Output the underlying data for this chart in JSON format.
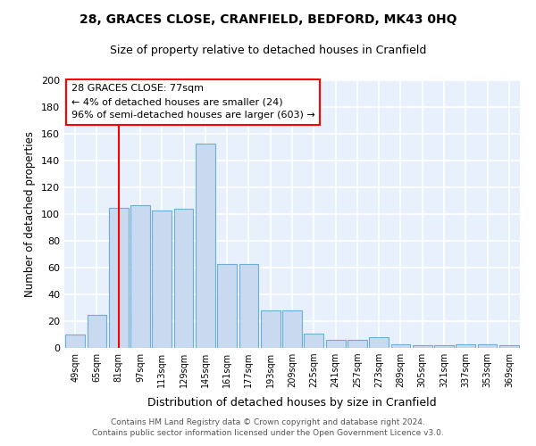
{
  "title1": "28, GRACES CLOSE, CRANFIELD, BEDFORD, MK43 0HQ",
  "title2": "Size of property relative to detached houses in Cranfield",
  "xlabel": "Distribution of detached houses by size in Cranfield",
  "ylabel": "Number of detached properties",
  "categories": [
    "49sqm",
    "65sqm",
    "81sqm",
    "97sqm",
    "113sqm",
    "129sqm",
    "145sqm",
    "161sqm",
    "177sqm",
    "193sqm",
    "209sqm",
    "225sqm",
    "241sqm",
    "257sqm",
    "273sqm",
    "289sqm",
    "305sqm",
    "321sqm",
    "337sqm",
    "353sqm",
    "369sqm"
  ],
  "values": [
    10,
    25,
    105,
    107,
    103,
    104,
    153,
    63,
    63,
    28,
    28,
    11,
    6,
    6,
    8,
    3,
    2,
    2,
    3,
    3,
    2
  ],
  "bar_color": "#c9d9f0",
  "bar_edgecolor": "#6baed6",
  "background_color": "#e8f0fb",
  "grid_color": "#ffffff",
  "redline_x": 2,
  "annotation_text": "28 GRACES CLOSE: 77sqm\n← 4% of detached houses are smaller (24)\n96% of semi-detached houses are larger (603) →",
  "footer1": "Contains HM Land Registry data © Crown copyright and database right 2024.",
  "footer2": "Contains public sector information licensed under the Open Government Licence v3.0.",
  "ylim": [
    0,
    200
  ],
  "yticks": [
    0,
    20,
    40,
    60,
    80,
    100,
    120,
    140,
    160,
    180,
    200
  ]
}
